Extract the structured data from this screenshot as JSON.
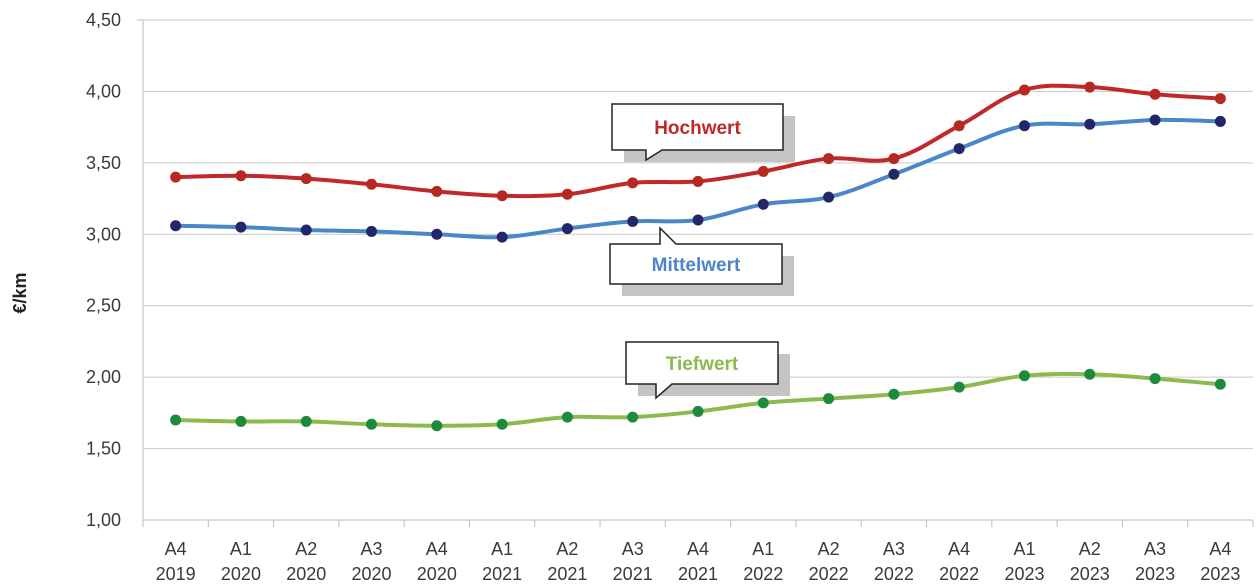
{
  "chart_data": {
    "type": "line",
    "ylabel": "€/km",
    "ylim": [
      1.0,
      4.5
    ],
    "yticks": [
      "1,00",
      "1,50",
      "2,00",
      "2,50",
      "3,00",
      "3,50",
      "4,00",
      "4,50"
    ],
    "grid": true,
    "categories": [
      [
        "A4",
        "2019"
      ],
      [
        "A1",
        "2020"
      ],
      [
        "A2",
        "2020"
      ],
      [
        "A3",
        "2020"
      ],
      [
        "A4",
        "2020"
      ],
      [
        "A1",
        "2021"
      ],
      [
        "A2",
        "2021"
      ],
      [
        "A3",
        "2021"
      ],
      [
        "A4",
        "2021"
      ],
      [
        "A1",
        "2022"
      ],
      [
        "A2",
        "2022"
      ],
      [
        "A3",
        "2022"
      ],
      [
        "A4",
        "2022"
      ],
      [
        "A1",
        "2023"
      ],
      [
        "A2",
        "2023"
      ],
      [
        "A3",
        "2023"
      ],
      [
        "A4",
        "2023"
      ]
    ],
    "series": [
      {
        "name": "Hochwert",
        "line_color": "#c0282a",
        "marker_color": "#b42a23",
        "values": [
          3.4,
          3.41,
          3.39,
          3.35,
          3.3,
          3.27,
          3.28,
          3.36,
          3.37,
          3.44,
          3.53,
          3.53,
          3.76,
          4.01,
          4.03,
          3.98,
          3.95
        ]
      },
      {
        "name": "Mittelwert",
        "line_color": "#4a86c8",
        "marker_color": "#22276a",
        "values": [
          3.06,
          3.05,
          3.03,
          3.02,
          3.0,
          2.98,
          3.04,
          3.09,
          3.1,
          3.21,
          3.26,
          3.42,
          3.6,
          3.76,
          3.77,
          3.8,
          3.79
        ]
      },
      {
        "name": "Tiefwert",
        "line_color": "#8cba4e",
        "marker_color": "#1e8a3e",
        "values": [
          1.7,
          1.69,
          1.69,
          1.67,
          1.66,
          1.67,
          1.72,
          1.72,
          1.76,
          1.82,
          1.85,
          1.88,
          1.93,
          2.01,
          2.02,
          1.99,
          1.95
        ]
      }
    ]
  }
}
